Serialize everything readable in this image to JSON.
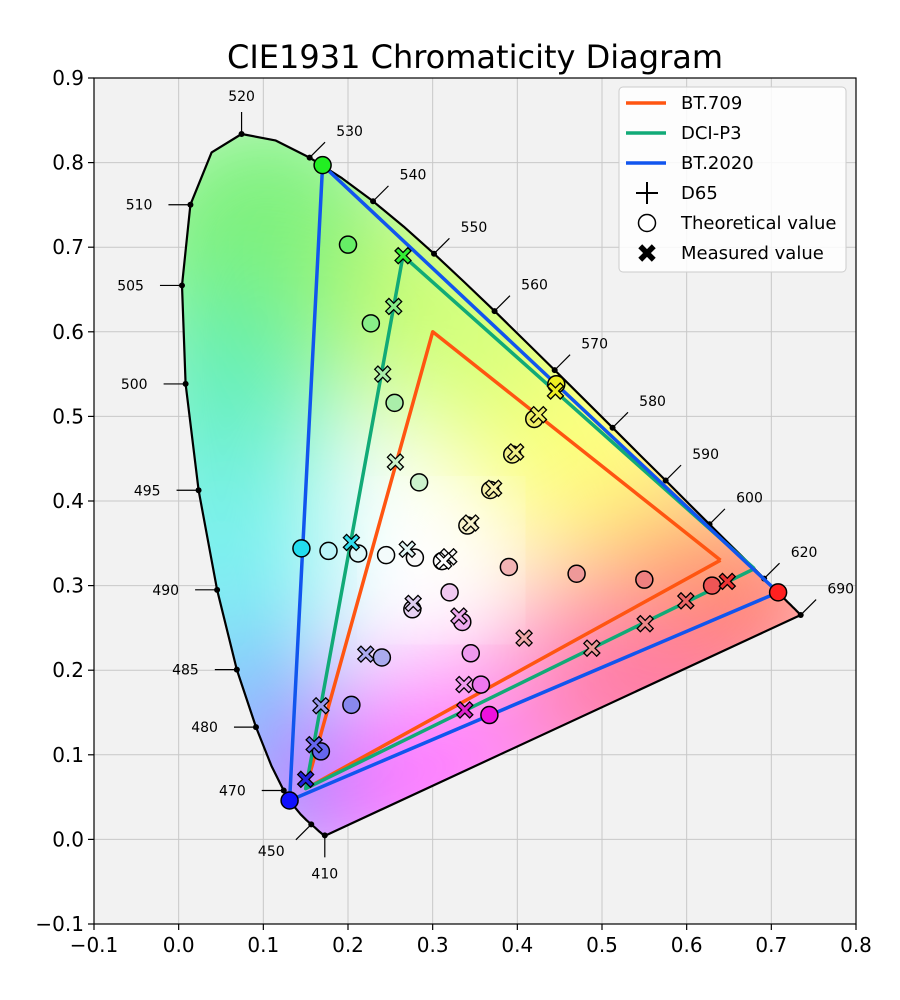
{
  "chart_data": {
    "type": "scatter",
    "title": "CIE1931 Chromaticity Diagram",
    "xlabel": "",
    "ylabel": "",
    "xlim": [
      -0.1,
      0.8
    ],
    "ylim": [
      -0.1,
      0.9
    ],
    "xticks": [
      "−0.1",
      "0.0",
      "0.1",
      "0.2",
      "0.3",
      "0.4",
      "0.5",
      "0.6",
      "0.7",
      "0.8"
    ],
    "yticks": [
      "−0.1",
      "0.0",
      "0.1",
      "0.2",
      "0.3",
      "0.4",
      "0.5",
      "0.6",
      "0.7",
      "0.8",
      "0.9"
    ],
    "grid": true,
    "legend_position": "top-right",
    "spectral_locus": [
      [
        0.1741,
        0.005
      ],
      [
        0.1738,
        0.0049
      ],
      [
        0.173,
        0.0048
      ],
      [
        0.172,
        0.0048
      ],
      [
        0.1703,
        0.0058
      ],
      [
        0.1666,
        0.0089
      ],
      [
        0.1611,
        0.0138
      ],
      [
        0.1566,
        0.0177
      ],
      [
        0.151,
        0.0227
      ],
      [
        0.144,
        0.0297
      ],
      [
        0.1355,
        0.0399
      ],
      [
        0.1241,
        0.0578
      ],
      [
        0.1096,
        0.0868
      ],
      [
        0.0913,
        0.1327
      ],
      [
        0.0687,
        0.2007
      ],
      [
        0.0454,
        0.295
      ],
      [
        0.0235,
        0.4127
      ],
      [
        0.0082,
        0.5384
      ],
      [
        0.0039,
        0.6548
      ],
      [
        0.0139,
        0.7502
      ],
      [
        0.0389,
        0.812
      ],
      [
        0.0743,
        0.8338
      ],
      [
        0.1142,
        0.8262
      ],
      [
        0.1547,
        0.8059
      ],
      [
        0.1929,
        0.7816
      ],
      [
        0.2296,
        0.7543
      ],
      [
        0.2658,
        0.7243
      ],
      [
        0.3016,
        0.6923
      ],
      [
        0.3373,
        0.6589
      ],
      [
        0.3731,
        0.6245
      ],
      [
        0.4087,
        0.5896
      ],
      [
        0.4441,
        0.5547
      ],
      [
        0.4788,
        0.5202
      ],
      [
        0.5125,
        0.4866
      ],
      [
        0.5448,
        0.4544
      ],
      [
        0.5752,
        0.4242
      ],
      [
        0.6029,
        0.3965
      ],
      [
        0.627,
        0.3725
      ],
      [
        0.6482,
        0.3514
      ],
      [
        0.6658,
        0.334
      ],
      [
        0.6801,
        0.3197
      ],
      [
        0.6915,
        0.3083
      ],
      [
        0.7006,
        0.2993
      ],
      [
        0.7079,
        0.292
      ],
      [
        0.714,
        0.2859
      ],
      [
        0.719,
        0.2809
      ],
      [
        0.723,
        0.277
      ],
      [
        0.726,
        0.274
      ],
      [
        0.7283,
        0.2717
      ],
      [
        0.73,
        0.27
      ],
      [
        0.7311,
        0.2689
      ],
      [
        0.732,
        0.268
      ],
      [
        0.7327,
        0.2673
      ],
      [
        0.7334,
        0.2666
      ],
      [
        0.734,
        0.266
      ],
      [
        0.7344,
        0.2656
      ],
      [
        0.7346,
        0.2654
      ],
      [
        0.7347,
        0.2653
      ]
    ],
    "wavelength_labels": [
      {
        "label": "410",
        "x": 0.1726,
        "y": 0.0048,
        "dir": "S"
      },
      {
        "label": "450",
        "x": 0.1566,
        "y": 0.0177,
        "dir": "SW"
      },
      {
        "label": "470",
        "x": 0.1241,
        "y": 0.0578,
        "dir": "W"
      },
      {
        "label": "480",
        "x": 0.0913,
        "y": 0.1327,
        "dir": "W"
      },
      {
        "label": "485",
        "x": 0.0687,
        "y": 0.2007,
        "dir": "W"
      },
      {
        "label": "490",
        "x": 0.0454,
        "y": 0.295,
        "dir": "W"
      },
      {
        "label": "495",
        "x": 0.0235,
        "y": 0.4127,
        "dir": "W"
      },
      {
        "label": "500",
        "x": 0.0082,
        "y": 0.5384,
        "dir": "W"
      },
      {
        "label": "505",
        "x": 0.0039,
        "y": 0.6548,
        "dir": "W"
      },
      {
        "label": "510",
        "x": 0.0139,
        "y": 0.7502,
        "dir": "W"
      },
      {
        "label": "520",
        "x": 0.0743,
        "y": 0.8338,
        "dir": "N"
      },
      {
        "label": "530",
        "x": 0.1547,
        "y": 0.8059,
        "dir": "NE"
      },
      {
        "label": "540",
        "x": 0.2296,
        "y": 0.7543,
        "dir": "NE"
      },
      {
        "label": "550",
        "x": 0.3016,
        "y": 0.6923,
        "dir": "NE"
      },
      {
        "label": "560",
        "x": 0.3731,
        "y": 0.6245,
        "dir": "NE"
      },
      {
        "label": "570",
        "x": 0.4441,
        "y": 0.5547,
        "dir": "NE"
      },
      {
        "label": "580",
        "x": 0.5125,
        "y": 0.4866,
        "dir": "NE"
      },
      {
        "label": "590",
        "x": 0.5752,
        "y": 0.4242,
        "dir": "NE"
      },
      {
        "label": "600",
        "x": 0.627,
        "y": 0.3725,
        "dir": "NE"
      },
      {
        "label": "620",
        "x": 0.6915,
        "y": 0.3083,
        "dir": "NE"
      },
      {
        "label": "690",
        "x": 0.7347,
        "y": 0.2653,
        "dir": "NE"
      }
    ],
    "series": [
      {
        "name": "BT.709",
        "color": "#ff5511",
        "points": [
          [
            0.64,
            0.33
          ],
          [
            0.3,
            0.6
          ],
          [
            0.15,
            0.06
          ],
          [
            0.64,
            0.33
          ]
        ]
      },
      {
        "name": "DCI-P3",
        "color": "#11aa77",
        "points": [
          [
            0.68,
            0.32
          ],
          [
            0.265,
            0.69
          ],
          [
            0.15,
            0.06
          ],
          [
            0.68,
            0.32
          ]
        ]
      },
      {
        "name": "BT.2020",
        "color": "#1155ee",
        "points": [
          [
            0.708,
            0.292
          ],
          [
            0.17,
            0.797
          ],
          [
            0.131,
            0.046
          ],
          [
            0.708,
            0.292
          ]
        ]
      }
    ],
    "legend": [
      {
        "label": "BT.709",
        "kind": "line",
        "color": "#ff5511"
      },
      {
        "label": "DCI-P3",
        "kind": "line",
        "color": "#11aa77"
      },
      {
        "label": "BT.2020",
        "kind": "line",
        "color": "#1155ee"
      },
      {
        "label": "D65",
        "kind": "plus",
        "color": "#000000"
      },
      {
        "label": "Theoretical value",
        "kind": "circle",
        "color": "#000000"
      },
      {
        "label": "Measured value",
        "kind": "cross",
        "color": "#000000"
      }
    ],
    "theoretical_points": [
      [
        0.708,
        0.292,
        "#ff2020"
      ],
      [
        0.17,
        0.797,
        "#22ee22"
      ],
      [
        0.131,
        0.046,
        "#1010ff"
      ],
      [
        0.145,
        0.344,
        "#22ddee"
      ],
      [
        0.367,
        0.147,
        "#ee11dd"
      ],
      [
        0.446,
        0.538,
        "#eeee22"
      ],
      [
        0.63,
        0.3,
        "#ee5555"
      ],
      [
        0.55,
        0.307,
        "#ee8080"
      ],
      [
        0.47,
        0.314,
        "#ee9999"
      ],
      [
        0.39,
        0.322,
        "#f2b4b4"
      ],
      [
        0.32,
        0.292,
        "#f0c8f0"
      ],
      [
        0.335,
        0.257,
        "#eeaaee"
      ],
      [
        0.345,
        0.22,
        "#ee99ee"
      ],
      [
        0.357,
        0.183,
        "#ee77ee"
      ],
      [
        0.2,
        0.703,
        "#66ee66"
      ],
      [
        0.227,
        0.61,
        "#88ee88"
      ],
      [
        0.255,
        0.516,
        "#aaeeaa"
      ],
      [
        0.284,
        0.422,
        "#ccf2cc"
      ],
      [
        0.177,
        0.341,
        "#bbf4f8"
      ],
      [
        0.212,
        0.338,
        "#ddf8fa"
      ],
      [
        0.245,
        0.336,
        "#f3fbfb"
      ],
      [
        0.279,
        0.333,
        "#f8f8f8"
      ],
      [
        0.311,
        0.329,
        "#ffffff"
      ],
      [
        0.24,
        0.215,
        "#aaaaee"
      ],
      [
        0.204,
        0.159,
        "#8888ee"
      ],
      [
        0.168,
        0.104,
        "#6666ee"
      ],
      [
        0.276,
        0.272,
        "#e8d2f4"
      ],
      [
        0.341,
        0.371,
        "#f7f2cc"
      ],
      [
        0.368,
        0.413,
        "#f5f0aa"
      ],
      [
        0.394,
        0.455,
        "#f2ee88"
      ],
      [
        0.42,
        0.497,
        "#efee66"
      ]
    ],
    "measured_points": [
      [
        0.648,
        0.305,
        "#ee3333"
      ],
      [
        0.265,
        0.69,
        "#33ee33"
      ],
      [
        0.15,
        0.071,
        "#2222dd"
      ],
      [
        0.204,
        0.351,
        "#33ddee"
      ],
      [
        0.338,
        0.153,
        "#dd22cc"
      ],
      [
        0.445,
        0.53,
        "#eeee22"
      ],
      [
        0.599,
        0.282,
        "#ee6666"
      ],
      [
        0.551,
        0.255,
        "#ee8888"
      ],
      [
        0.488,
        0.226,
        "#ee9999"
      ],
      [
        0.408,
        0.238,
        "#f0aaaa"
      ],
      [
        0.337,
        0.183,
        "#ee99ee"
      ],
      [
        0.331,
        0.264,
        "#eeaaee"
      ],
      [
        0.254,
        0.63,
        "#88ee88"
      ],
      [
        0.241,
        0.55,
        "#aaeeaa"
      ],
      [
        0.256,
        0.446,
        "#ccf2cc"
      ],
      [
        0.27,
        0.343,
        "#e2f6f6"
      ],
      [
        0.319,
        0.334,
        "#f8f8f8"
      ],
      [
        0.313,
        0.329,
        "#ffffff"
      ],
      [
        0.221,
        0.219,
        "#aaaaee"
      ],
      [
        0.168,
        0.158,
        "#9999ee"
      ],
      [
        0.16,
        0.112,
        "#6666ee"
      ],
      [
        0.277,
        0.279,
        "#ddccee"
      ],
      [
        0.345,
        0.374,
        "#f7f2cc"
      ],
      [
        0.372,
        0.415,
        "#f5f0aa"
      ],
      [
        0.398,
        0.458,
        "#f2ee88"
      ],
      [
        0.425,
        0.502,
        "#efee66"
      ]
    ]
  }
}
